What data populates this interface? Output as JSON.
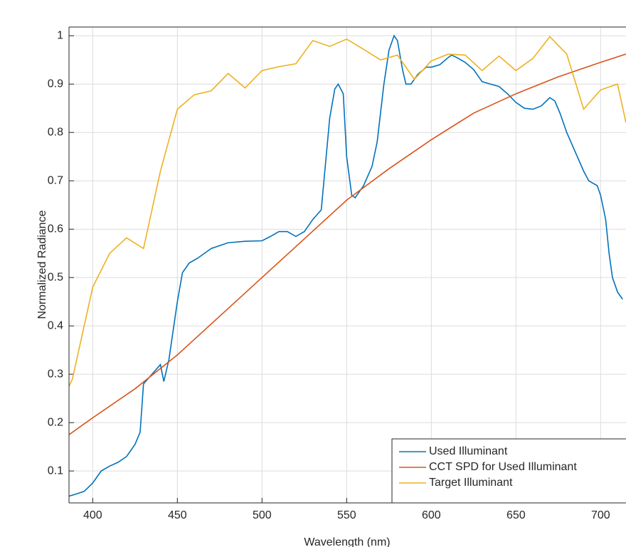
{
  "chart_data": {
    "type": "line",
    "x_label": "Wavelength (nm)",
    "y_label": "Normalized Radiance",
    "xlim": [
      386,
      715
    ],
    "ylim": [
      0.034,
      1.018
    ],
    "xticks": [
      400,
      450,
      500,
      550,
      600,
      650,
      700
    ],
    "yticks": [
      0.1,
      0.2,
      0.3,
      0.4,
      0.5,
      0.6,
      0.7,
      0.8,
      0.9,
      1
    ],
    "grid": true,
    "legend": "lower right",
    "series": [
      {
        "name": "Used Illuminant",
        "color": "#0072bd",
        "x": [
          386,
          390,
          395,
          400,
          405,
          410,
          415,
          420,
          425,
          428,
          430,
          435,
          440,
          442,
          445,
          450,
          453,
          457,
          462,
          470,
          480,
          490,
          500,
          505,
          510,
          515,
          520,
          525,
          530,
          535,
          540,
          543,
          545,
          548,
          550,
          553,
          555,
          560,
          565,
          568,
          572,
          575,
          578,
          580,
          583,
          585,
          588,
          592,
          597,
          600,
          605,
          610,
          612,
          615,
          620,
          625,
          630,
          635,
          640,
          645,
          650,
          655,
          660,
          665,
          670,
          673,
          676,
          680,
          685,
          690,
          693,
          698,
          700,
          703,
          705,
          707,
          710,
          713
        ],
        "values": [
          0.048,
          0.052,
          0.058,
          0.075,
          0.1,
          0.11,
          0.118,
          0.13,
          0.155,
          0.18,
          0.28,
          0.3,
          0.32,
          0.285,
          0.33,
          0.45,
          0.51,
          0.53,
          0.54,
          0.56,
          0.572,
          0.575,
          0.576,
          0.585,
          0.595,
          0.595,
          0.585,
          0.595,
          0.62,
          0.64,
          0.83,
          0.89,
          0.9,
          0.88,
          0.75,
          0.67,
          0.665,
          0.69,
          0.73,
          0.78,
          0.9,
          0.97,
          1.0,
          0.99,
          0.93,
          0.9,
          0.9,
          0.92,
          0.935,
          0.935,
          0.94,
          0.955,
          0.96,
          0.955,
          0.945,
          0.93,
          0.905,
          0.9,
          0.895,
          0.88,
          0.862,
          0.85,
          0.848,
          0.855,
          0.872,
          0.865,
          0.84,
          0.8,
          0.76,
          0.72,
          0.7,
          0.69,
          0.67,
          0.62,
          0.55,
          0.5,
          0.47,
          0.455
        ]
      },
      {
        "name": "CCT SPD for Used Illuminant",
        "color": "#d95319",
        "x": [
          386,
          400,
          425,
          450,
          475,
          500,
          525,
          550,
          575,
          600,
          625,
          650,
          675,
          700,
          715
        ],
        "values": [
          0.175,
          0.21,
          0.27,
          0.34,
          0.42,
          0.5,
          0.58,
          0.66,
          0.725,
          0.785,
          0.84,
          0.88,
          0.915,
          0.945,
          0.962
        ]
      },
      {
        "name": "Target Illuminant",
        "color": "#edb120",
        "x": [
          386,
          388,
          400,
          410,
          420,
          430,
          440,
          450,
          460,
          470,
          480,
          490,
          500,
          510,
          520,
          530,
          540,
          550,
          560,
          570,
          580,
          590,
          600,
          610,
          620,
          630,
          640,
          650,
          660,
          670,
          680,
          690,
          700,
          710,
          715
        ],
        "values": [
          0.275,
          0.29,
          0.48,
          0.55,
          0.582,
          0.56,
          0.72,
          0.848,
          0.878,
          0.886,
          0.922,
          0.892,
          0.928,
          0.936,
          0.942,
          0.99,
          0.978,
          0.993,
          0.972,
          0.95,
          0.96,
          0.91,
          0.948,
          0.962,
          0.96,
          0.928,
          0.958,
          0.928,
          0.953,
          0.998,
          0.962,
          0.848,
          0.888,
          0.9,
          0.82
        ]
      }
    ]
  }
}
